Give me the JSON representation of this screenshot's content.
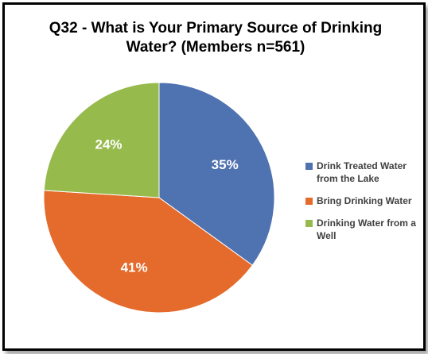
{
  "chart_data": {
    "type": "pie",
    "title": "Q32 - What is Your Primary Source of Drinking Water? (Members n=561)",
    "categories": [
      "Drink Treated Water from the Lake",
      "Bring Drinking Water",
      "Drinking Water from a Well"
    ],
    "values": [
      35,
      41,
      24
    ],
    "data_labels": [
      "35%",
      "41%",
      "24%"
    ],
    "colors": [
      "#4F72B0",
      "#E46B2B",
      "#97BA4D"
    ],
    "legend_position": "right"
  }
}
